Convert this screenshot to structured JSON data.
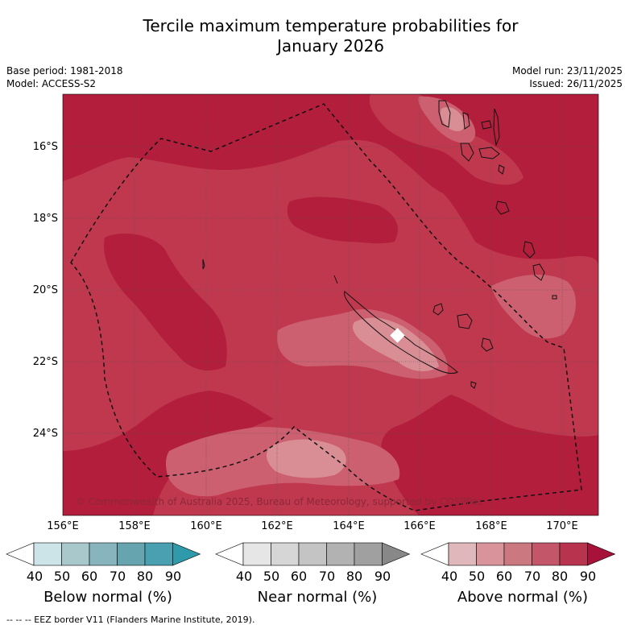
{
  "title": {
    "line1": "Tercile maximum temperature probabilities for",
    "line2": "January 2026"
  },
  "meta": {
    "base_period": "Base period: 1981-2018",
    "model": "Model: ACCESS-S2",
    "model_run": "Model run: 23/11/2025",
    "issued": "Issued: 26/11/2025"
  },
  "map": {
    "lat_labels": [
      "16°S",
      "18°S",
      "20°S",
      "22°S",
      "24°S"
    ],
    "lon_labels": [
      "156°E",
      "158°E",
      "160°E",
      "162°E",
      "164°E",
      "166°E",
      "168°E",
      "170°E"
    ],
    "copyright": "© Commonwealth of Australia 2025, Bureau of Meteorology, supported by COSPPac",
    "colors": {
      "above_80": "#b21e3c",
      "above_70": "#c0384e",
      "above_60": "#cc6070",
      "above_50": "#d98e95"
    }
  },
  "legends": [
    {
      "name": "below",
      "title": "Below normal (%)",
      "ticks": [
        "40",
        "50",
        "60",
        "70",
        "80",
        "90"
      ],
      "colors": [
        "#ffffff",
        "#cce4e8",
        "#a8c8cc",
        "#88b4be",
        "#66a4b0",
        "#4aa0b0",
        "#2e9aaa"
      ]
    },
    {
      "name": "near",
      "title": "Near normal (%)",
      "ticks": [
        "40",
        "50",
        "60",
        "70",
        "80",
        "90"
      ],
      "colors": [
        "#ffffff",
        "#e6e6e6",
        "#d6d6d6",
        "#c4c4c4",
        "#b2b2b2",
        "#a0a0a0",
        "#888888"
      ]
    },
    {
      "name": "above",
      "title": "Above normal (%)",
      "ticks": [
        "40",
        "50",
        "60",
        "70",
        "80",
        "90"
      ],
      "colors": [
        "#ffffff",
        "#e0b8bc",
        "#d8949a",
        "#cc7880",
        "#c4566a",
        "#b8344e",
        "#a8123a"
      ]
    }
  ],
  "footer": "--  --  -- EEZ border V11 (Flanders Marine Institute, 2019)."
}
